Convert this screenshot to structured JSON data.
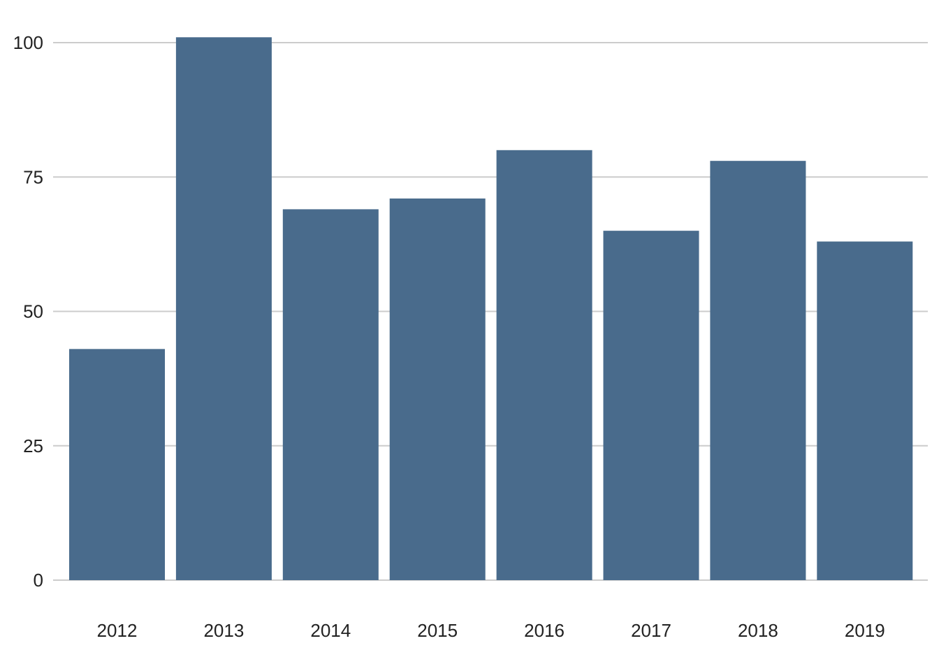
{
  "chart_data": {
    "type": "bar",
    "title": "",
    "xlabel": "",
    "ylabel": "",
    "categories": [
      "2012",
      "2013",
      "2014",
      "2015",
      "2016",
      "2017",
      "2018",
      "2019"
    ],
    "values": [
      43,
      101,
      69,
      71,
      80,
      65,
      78,
      63
    ],
    "ylim": [
      0,
      105
    ],
    "yticks": [
      0,
      25,
      50,
      75,
      100
    ],
    "grid": "horizontal",
    "legend": "none",
    "colors": {
      "bar": "#496b8c",
      "grid": "#cccccc",
      "text": "#222222"
    }
  }
}
